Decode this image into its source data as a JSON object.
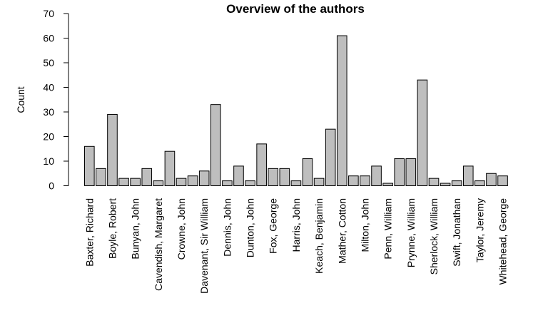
{
  "chart_data": {
    "type": "bar",
    "title": "Overview of the authors",
    "xlabel": "",
    "ylabel": "Count",
    "ylim": [
      0,
      70
    ],
    "yticks": [
      0,
      10,
      20,
      30,
      40,
      50,
      60,
      70
    ],
    "grid": false,
    "bar_color": "#bebebe",
    "categories": [
      "Baxter, Richard",
      "",
      "Boyle, Robert",
      "",
      "Bunyan, John",
      "",
      "Cavendish, Margaret",
      "",
      "Crowne, John",
      "",
      "Davenant, Sir William",
      "",
      "Dennis, John",
      "",
      "Dunton, John",
      "",
      "Fox, George",
      "",
      "Harris, John",
      "",
      "Keach, Benjamin",
      "",
      "Mather, Cotton",
      "",
      "Milton, John",
      "",
      "Penn, William",
      "",
      "Prynne, William",
      "",
      "Sherlock, William",
      "",
      "Swift, Jonathan",
      "",
      "Taylor, Jeremy",
      "",
      "Whitehead, George"
    ],
    "values": [
      16,
      7,
      29,
      3,
      3,
      7,
      2,
      14,
      3,
      4,
      6,
      33,
      2,
      8,
      2,
      17,
      7,
      7,
      2,
      11,
      3,
      23,
      61,
      4,
      4,
      8,
      1,
      11,
      11,
      43,
      3,
      1,
      2,
      8,
      2,
      5,
      4
    ]
  }
}
